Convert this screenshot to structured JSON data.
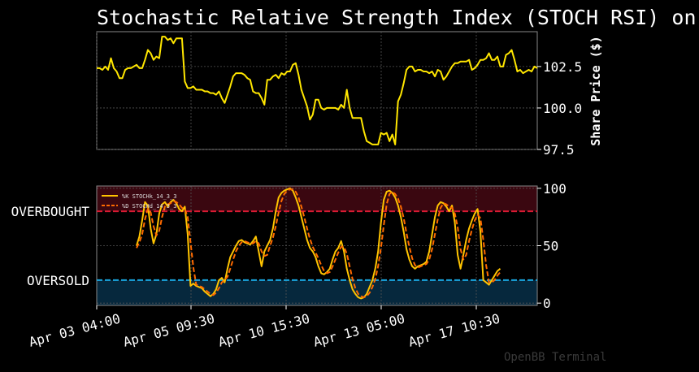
{
  "chart_data": {
    "title": "Stochastic Relative Strength Index (STOCH RSI) on",
    "watermark": "OpenBB Terminal",
    "x_tick_labels": [
      "Apr 03 04:00",
      "Apr 05 09:30",
      "Apr 10 15:30",
      "Apr 13 05:00",
      "Apr 17 10:30"
    ],
    "price_panel": {
      "type": "line",
      "ylabel": "Share Price ($)",
      "ylim": [
        97.5,
        104.6
      ],
      "yticks": [
        97.5,
        100.0,
        102.5
      ],
      "ytick_labels": [
        "97.5",
        "100.0",
        "102.5"
      ],
      "color": "#ffe600",
      "values": [
        102.4,
        102.4,
        102.3,
        102.5,
        102.3,
        103.0,
        102.4,
        102.2,
        101.8,
        101.8,
        102.3,
        102.4,
        102.4,
        102.5,
        102.6,
        102.4,
        102.4,
        102.9,
        103.5,
        103.3,
        102.9,
        103.1,
        103.0,
        104.3,
        104.3,
        104.1,
        104.2,
        103.9,
        104.2,
        104.2,
        104.2,
        101.6,
        101.2,
        101.2,
        101.3,
        101.1,
        101.1,
        101.1,
        101.0,
        101.0,
        100.9,
        100.9,
        100.8,
        101.0,
        100.6,
        100.3,
        100.8,
        101.3,
        101.9,
        102.1,
        102.1,
        102.1,
        102.0,
        101.8,
        101.7,
        101.0,
        100.9,
        100.9,
        100.6,
        100.2,
        101.7,
        101.7,
        101.9,
        102.0,
        101.8,
        102.1,
        102.0,
        102.2,
        102.2,
        102.6,
        102.7,
        102.0,
        101.1,
        100.6,
        100.1,
        99.3,
        99.6,
        100.5,
        100.5,
        100.0,
        99.9,
        100.0,
        100.0,
        100.0,
        100.0,
        99.9,
        100.2,
        100.0,
        101.1,
        100.0,
        99.4,
        99.4,
        99.4,
        99.4,
        98.6,
        98.0,
        97.9,
        97.8,
        97.8,
        97.8,
        98.5,
        98.4,
        98.5,
        98.0,
        98.4,
        97.8,
        100.4,
        100.8,
        101.5,
        102.3,
        102.5,
        102.5,
        102.2,
        102.3,
        102.3,
        102.2,
        102.2,
        102.1,
        102.2,
        101.9,
        102.3,
        102.2,
        101.7,
        101.9,
        102.2,
        102.5,
        102.7,
        102.7,
        102.8,
        102.8,
        102.8,
        102.9,
        102.3,
        102.4,
        102.6,
        102.9,
        102.9,
        103.0,
        103.3,
        102.9,
        102.9,
        103.1,
        102.5,
        102.5,
        103.2,
        103.3,
        103.5,
        102.9,
        102.2,
        102.3,
        102.1,
        102.2,
        102.3,
        102.2,
        102.5,
        102.4
      ]
    },
    "oscillator_panel": {
      "type": "line",
      "ylim": [
        -2,
        102
      ],
      "yticks": [
        0,
        50,
        100
      ],
      "ytick_labels": [
        "0",
        "50",
        "100"
      ],
      "levels": [
        {
          "label": "OVERBOUGHT",
          "value": 80,
          "color": "#d91a32",
          "fill": "#3a0710",
          "range": [
            80,
            102
          ]
        },
        {
          "label": "OVERSOLD",
          "value": 20,
          "color": "#1aa7e0",
          "fill": "#06283d",
          "range": [
            -2,
            20
          ]
        }
      ],
      "start_index": 14,
      "series": [
        {
          "name": "%K STOCHk_14_3_3",
          "color": "#ffc400",
          "style": "solid",
          "values": [
            50,
            58,
            72,
            88,
            85,
            65,
            52,
            60,
            78,
            86,
            88,
            84,
            88,
            90,
            87,
            82,
            80,
            84,
            60,
            15,
            17,
            15,
            14,
            13,
            10,
            8,
            6,
            8,
            12,
            20,
            22,
            18,
            30,
            40,
            45,
            50,
            54,
            55,
            53,
            52,
            51,
            54,
            58,
            45,
            32,
            45,
            50,
            55,
            65,
            80,
            92,
            96,
            98,
            99,
            100,
            98,
            92,
            85,
            75,
            65,
            55,
            48,
            45,
            40,
            32,
            26,
            25,
            27,
            30,
            38,
            45,
            48,
            54,
            45,
            30,
            20,
            12,
            8,
            5,
            4,
            5,
            8,
            14,
            20,
            30,
            45,
            70,
            90,
            97,
            98,
            96,
            92,
            85,
            75,
            62,
            47,
            38,
            32,
            30,
            32,
            33,
            34,
            36,
            45,
            60,
            75,
            85,
            88,
            87,
            84,
            80,
            85,
            70,
            42,
            30,
            42,
            55,
            65,
            72,
            78,
            82,
            62,
            20,
            18,
            16,
            20,
            24,
            28,
            30
          ]
        },
        {
          "name": "%D STOCHd_14_3_3",
          "color": "#ff6a00",
          "style": "dashed",
          "values": [
            48,
            53,
            60,
            73,
            82,
            79,
            67,
            59,
            63,
            75,
            84,
            86,
            87,
            89,
            88,
            86,
            83,
            82,
            75,
            53,
            31,
            16,
            15,
            14,
            12,
            10,
            8,
            7,
            9,
            13,
            18,
            20,
            23,
            30,
            38,
            45,
            50,
            53,
            54,
            53,
            52,
            52,
            54,
            52,
            45,
            41,
            42,
            50,
            57,
            67,
            79,
            89,
            95,
            98,
            99,
            99,
            97,
            92,
            84,
            75,
            65,
            56,
            49,
            44,
            39,
            33,
            28,
            26,
            27,
            32,
            38,
            44,
            49,
            49,
            43,
            32,
            21,
            13,
            8,
            6,
            5,
            6,
            9,
            14,
            21,
            32,
            48,
            68,
            86,
            95,
            97,
            95,
            91,
            84,
            74,
            61,
            49,
            39,
            33,
            31,
            32,
            33,
            34,
            38,
            47,
            60,
            73,
            83,
            87,
            86,
            84,
            83,
            78,
            66,
            47,
            38,
            42,
            54,
            64,
            72,
            77,
            74,
            55,
            33,
            18,
            18,
            20,
            24,
            27
          ]
        }
      ]
    }
  }
}
